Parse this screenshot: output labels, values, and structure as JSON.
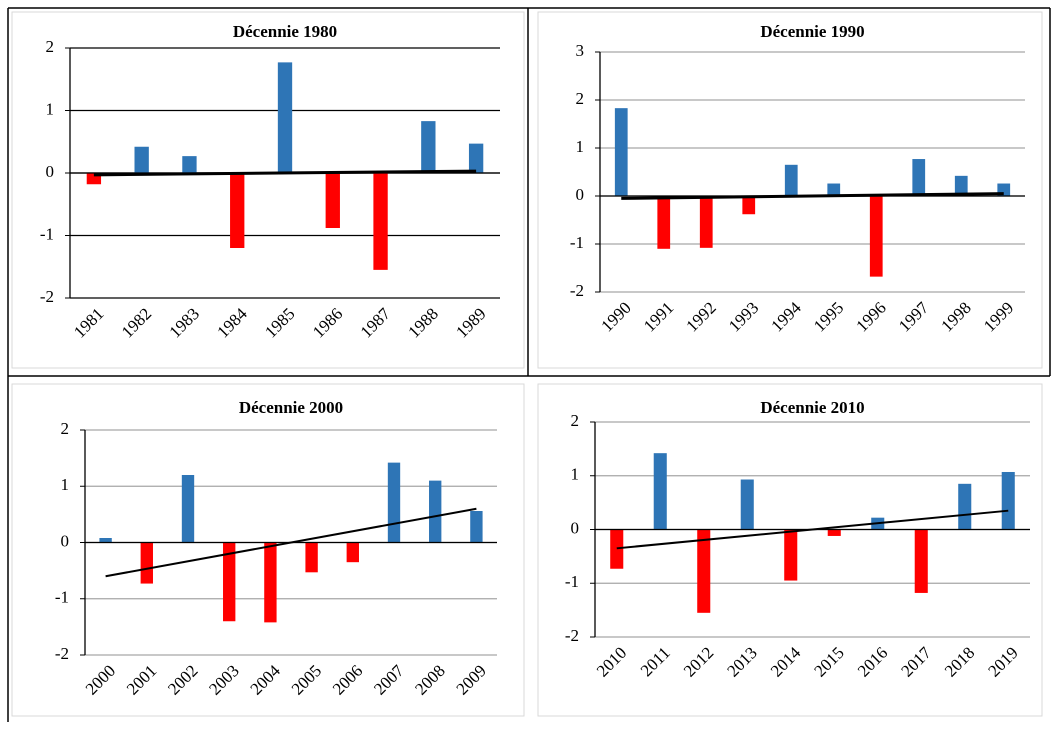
{
  "chart_data": [
    {
      "type": "bar",
      "title": "Décennie 1980",
      "categories": [
        "1981",
        "1982",
        "1983",
        "1984",
        "1985",
        "1986",
        "1987",
        "1988",
        "1989"
      ],
      "values": [
        -0.18,
        0.42,
        0.27,
        -1.2,
        1.77,
        -0.88,
        -1.55,
        0.83,
        0.47
      ],
      "ylim": [
        -2,
        2
      ],
      "yticks": [
        -2,
        -1,
        0,
        1,
        2
      ],
      "grid": true,
      "grid_color": "#000000",
      "positive_color": "#2e75b6",
      "negative_color": "#ff0000",
      "trendline": {
        "color": "#000000",
        "values": [
          -0.03,
          0.03
        ]
      }
    },
    {
      "type": "bar",
      "title": "Décennie 1990",
      "categories": [
        "1990",
        "1991",
        "1992",
        "1993",
        "1994",
        "1995",
        "1996",
        "1997",
        "1998",
        "1999"
      ],
      "values": [
        1.83,
        -1.1,
        -1.08,
        -0.38,
        0.65,
        0.26,
        -1.68,
        0.77,
        0.42,
        0.26
      ],
      "ylim": [
        -2,
        3
      ],
      "yticks": [
        -2,
        -1,
        0,
        1,
        2,
        3
      ],
      "grid": true,
      "grid_color": "#a6a6a6",
      "positive_color": "#2e75b6",
      "negative_color": "#ff0000",
      "trendline": {
        "color": "#000000",
        "values": [
          -0.05,
          0.05
        ]
      }
    },
    {
      "type": "bar",
      "title": "Décennie 2000",
      "categories": [
        "2000",
        "2001",
        "2002",
        "2003",
        "2004",
        "2005",
        "2006",
        "2007",
        "2008",
        "2009"
      ],
      "values": [
        0.08,
        -0.73,
        1.2,
        -1.4,
        -1.42,
        -0.53,
        -0.35,
        1.42,
        1.1,
        0.56
      ],
      "ylim": [
        -2,
        2
      ],
      "yticks": [
        -2,
        -1,
        0,
        1,
        2
      ],
      "grid": true,
      "grid_color": "#a6a6a6",
      "positive_color": "#2e75b6",
      "negative_color": "#ff0000",
      "trendline": {
        "color": "#000000",
        "values": [
          -0.6,
          0.6
        ]
      }
    },
    {
      "type": "bar",
      "title": "Décennie 2010",
      "categories": [
        "2010",
        "2011",
        "2012",
        "2013",
        "2014",
        "2015",
        "2016",
        "2017",
        "2018",
        "2019"
      ],
      "values": [
        -0.73,
        1.42,
        -1.55,
        0.93,
        -0.95,
        -0.12,
        0.22,
        -1.18,
        0.85,
        1.07
      ],
      "ylim": [
        -2,
        2
      ],
      "yticks": [
        -2,
        -1,
        0,
        1,
        2
      ],
      "grid": true,
      "grid_color": "#a6a6a6",
      "positive_color": "#2e75b6",
      "negative_color": "#ff0000",
      "trendline": {
        "color": "#000000",
        "values": [
          -0.35,
          0.35
        ]
      }
    }
  ]
}
